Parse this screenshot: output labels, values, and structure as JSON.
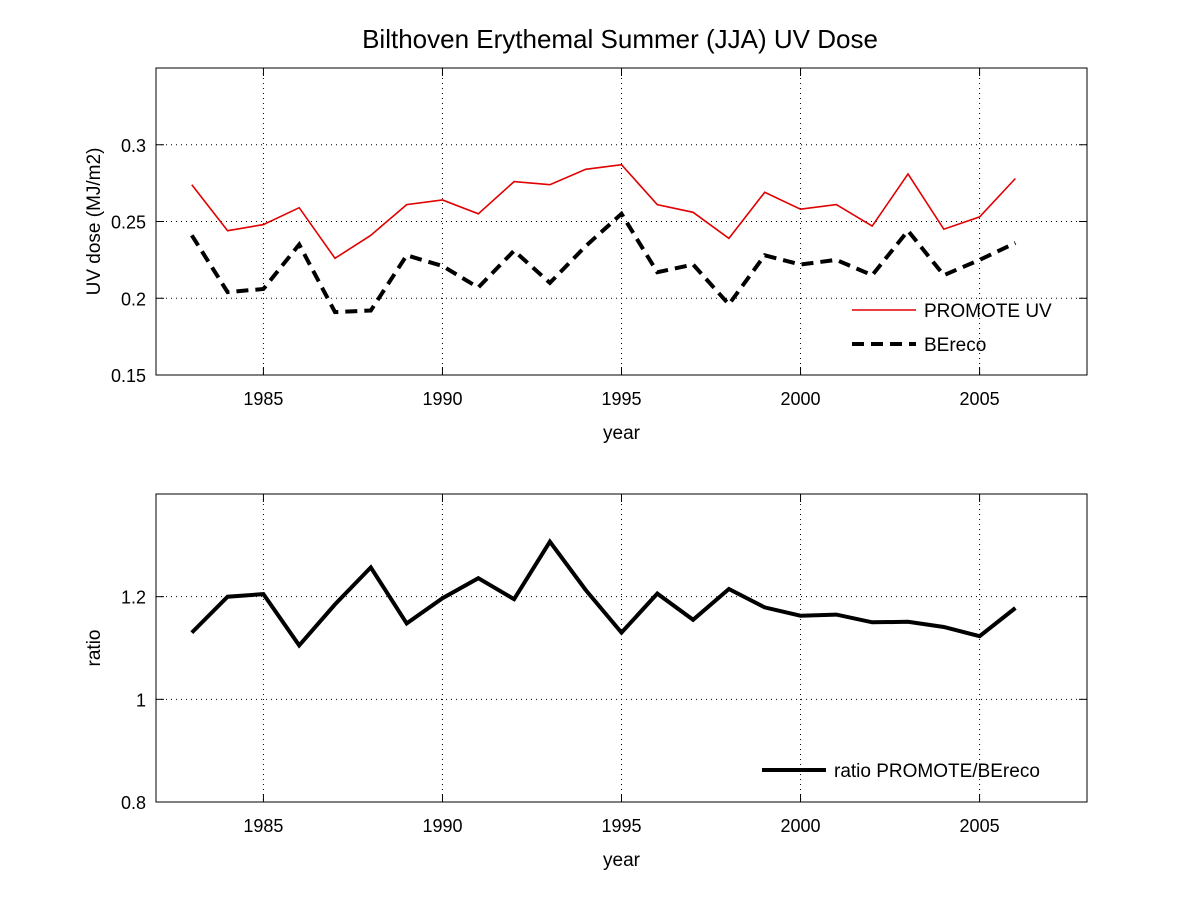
{
  "figure": {
    "title": "Bilthoven Erythemal Summer (JJA) UV Dose"
  },
  "chart_data": [
    {
      "type": "line",
      "id": "top",
      "title": "Bilthoven Erythemal Summer (JJA) UV Dose",
      "xlabel": "year",
      "ylabel": "UV dose (MJ/m2)",
      "xlim": [
        1982,
        2008
      ],
      "ylim": [
        0.15,
        0.35
      ],
      "xticks": [
        1985,
        1990,
        1995,
        2000,
        2005
      ],
      "yticks": [
        0.15,
        0.2,
        0.25,
        0.3
      ],
      "ytick_labels": [
        "0.15",
        "0.2",
        "0.25",
        "0.3"
      ],
      "grid": true,
      "legend_position": "bottom-right",
      "x": [
        1983,
        1984,
        1985,
        1986,
        1987,
        1988,
        1989,
        1990,
        1991,
        1992,
        1993,
        1994,
        1995,
        1996,
        1997,
        1998,
        1999,
        2000,
        2001,
        2002,
        2003,
        2004,
        2005,
        2006
      ],
      "series": [
        {
          "name": "PROMOTE UV",
          "color": "#e00000",
          "style": "solid",
          "width": 1.6,
          "values": [
            0.274,
            0.244,
            0.248,
            0.259,
            0.226,
            0.241,
            0.261,
            0.264,
            0.255,
            0.276,
            0.274,
            0.284,
            0.287,
            0.261,
            0.256,
            0.239,
            0.269,
            0.258,
            0.261,
            0.247,
            0.281,
            0.245,
            0.253,
            0.278
          ]
        },
        {
          "name": "BEreco",
          "color": "#000000",
          "style": "dashed",
          "width": 4,
          "values": [
            0.241,
            0.204,
            0.206,
            0.235,
            0.191,
            0.192,
            0.228,
            0.221,
            0.207,
            0.231,
            0.21,
            0.234,
            0.255,
            0.217,
            0.222,
            0.196,
            0.228,
            0.222,
            0.225,
            0.215,
            0.244,
            0.215,
            0.225,
            0.236
          ]
        }
      ]
    },
    {
      "type": "line",
      "id": "bottom",
      "xlabel": "year",
      "ylabel": "ratio",
      "xlim": [
        1982,
        2008
      ],
      "ylim": [
        0.8,
        1.4
      ],
      "xticks": [
        1985,
        1990,
        1995,
        2000,
        2005
      ],
      "yticks": [
        0.8,
        1.0,
        1.2
      ],
      "ytick_labels": [
        "0.8",
        "1",
        "1.2"
      ],
      "grid": true,
      "legend_position": "bottom-right",
      "x": [
        1983,
        1984,
        1985,
        1986,
        1987,
        1988,
        1989,
        1990,
        1991,
        1992,
        1993,
        1994,
        1995,
        1996,
        1997,
        1998,
        1999,
        2000,
        2001,
        2002,
        2003,
        2004,
        2005,
        2006
      ],
      "series": [
        {
          "name": "ratio PROMOTE/BEreco",
          "color": "#000000",
          "style": "solid",
          "width": 4,
          "values": [
            1.13,
            1.2,
            1.205,
            1.105,
            1.185,
            1.257,
            1.148,
            1.197,
            1.236,
            1.195,
            1.307,
            1.213,
            1.13,
            1.206,
            1.155,
            1.215,
            1.179,
            1.163,
            1.165,
            1.15,
            1.151,
            1.141,
            1.123,
            1.178
          ]
        }
      ]
    }
  ]
}
